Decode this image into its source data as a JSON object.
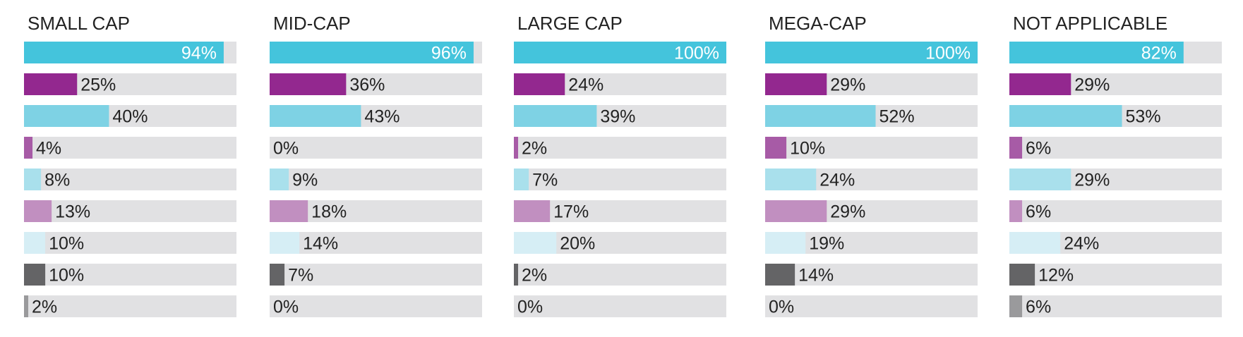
{
  "chart_data": [
    {
      "type": "bar",
      "title": "SMALL CAP",
      "values": [
        94,
        25,
        40,
        4,
        8,
        13,
        10,
        10,
        2
      ],
      "value_labels": [
        "94%",
        "25%",
        "40%",
        "4%",
        "8%",
        "13%",
        "10%",
        "10%",
        "2%"
      ],
      "xlim": [
        0,
        100
      ]
    },
    {
      "type": "bar",
      "title": "MID-CAP",
      "values": [
        96,
        36,
        43,
        0,
        9,
        18,
        14,
        7,
        0
      ],
      "value_labels": [
        "96%",
        "36%",
        "43%",
        "0%",
        "9%",
        "18%",
        "14%",
        "7%",
        "0%"
      ],
      "xlim": [
        0,
        100
      ]
    },
    {
      "type": "bar",
      "title": "LARGE CAP",
      "values": [
        100,
        24,
        39,
        2,
        7,
        17,
        20,
        2,
        0
      ],
      "value_labels": [
        "100%",
        "24%",
        "39%",
        "2%",
        "7%",
        "17%",
        "20%",
        "2%",
        "0%"
      ],
      "xlim": [
        0,
        100
      ]
    },
    {
      "type": "bar",
      "title": "MEGA-CAP",
      "values": [
        100,
        29,
        52,
        10,
        24,
        29,
        19,
        14,
        0
      ],
      "value_labels": [
        "100%",
        "29%",
        "52%",
        "10%",
        "24%",
        "29%",
        "19%",
        "14%",
        "0%"
      ],
      "xlim": [
        0,
        100
      ]
    },
    {
      "type": "bar",
      "title": "NOT APPLICABLE",
      "values": [
        82,
        29,
        53,
        6,
        29,
        6,
        24,
        12,
        6
      ],
      "value_labels": [
        "82%",
        "29%",
        "53%",
        "6%",
        "29%",
        "6%",
        "24%",
        "12%",
        "6%"
      ],
      "xlim": [
        0,
        100
      ]
    }
  ],
  "colors": {
    "track": "#e1e1e3",
    "row_colors": [
      "#44c4dc",
      "#93288f",
      "#7ed2e4",
      "#a75ba6",
      "#a9e0ec",
      "#c18fc0",
      "#d6eef5",
      "#646466",
      "#9a9a9c"
    ],
    "label_dark": "#222222",
    "label_light": "#ffffff"
  }
}
